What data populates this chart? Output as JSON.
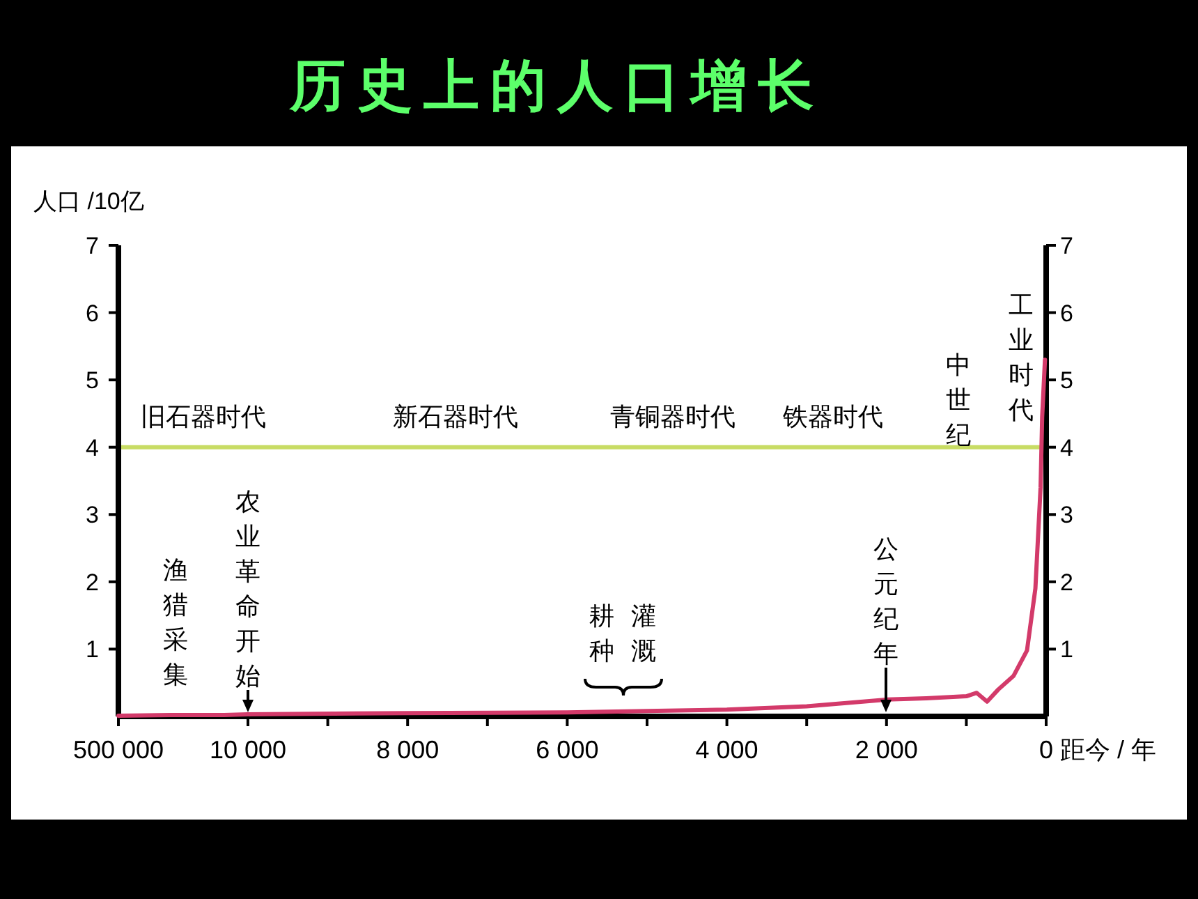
{
  "chart_data": [
    {
      "type": "line",
      "ylabel": "人口 /10亿",
      "xlim": [
        500000,
        10000
      ],
      "xticks": [
        {
          "value": 500000,
          "label": "500 000"
        },
        {
          "value": 10000,
          "label": "10 000"
        }
      ],
      "ylim": [
        0,
        7
      ],
      "yticks": [
        1,
        2,
        3,
        4,
        5,
        6,
        7
      ],
      "x": [
        500000,
        300000,
        200000,
        100000,
        10000
      ],
      "series": [
        {
          "color": "#d33a6a",
          "values": [
            0.01,
            0.02,
            0.02,
            0.02,
            0.03
          ]
        }
      ],
      "ref_lines": [
        {
          "axis": "y",
          "value": 4,
          "color": "#c8dc64"
        }
      ],
      "annotations": [
        "旧石器时代",
        "渔猎采集",
        "农业革命开始"
      ]
    },
    {
      "type": "line",
      "title": "历史上的人口增长",
      "xlabel": "距今 / 年",
      "xlim": [
        10000,
        0
      ],
      "xticks": [
        {
          "value": 9000,
          "label": null
        },
        {
          "value": 8000,
          "label": "8 000"
        },
        {
          "value": 7000,
          "label": null
        },
        {
          "value": 6000,
          "label": "6 000"
        },
        {
          "value": 5000,
          "label": null
        },
        {
          "value": 4000,
          "label": "4 000"
        },
        {
          "value": 3000,
          "label": null
        },
        {
          "value": 2000,
          "label": "2 000"
        },
        {
          "value": 1000,
          "label": null
        },
        {
          "value": 0,
          "label": "0"
        }
      ],
      "y2lim": [
        0,
        7
      ],
      "y2ticks": [
        1,
        2,
        3,
        4,
        5,
        6,
        7
      ],
      "x": [
        10000,
        8000,
        6000,
        5000,
        4000,
        3000,
        2000,
        1500,
        1000,
        870,
        740,
        600,
        410,
        240,
        135,
        70,
        50,
        15
      ],
      "series": [
        {
          "color": "#d33a6a",
          "axis": "y2",
          "values": [
            0.03,
            0.05,
            0.06,
            0.08,
            0.1,
            0.15,
            0.25,
            0.27,
            0.3,
            0.35,
            0.22,
            0.4,
            0.6,
            0.98,
            1.9,
            3.4,
            4.45,
            5.3
          ]
        }
      ],
      "ref_lines": [
        {
          "axis": "y2",
          "value": 4,
          "color": "#c8dc64"
        }
      ],
      "annotations": [
        "新石器时代",
        "青铜器时代",
        "铁器时代",
        "中世纪",
        "工业时代",
        "耕种",
        "灌溉",
        "公元纪年"
      ]
    }
  ]
}
